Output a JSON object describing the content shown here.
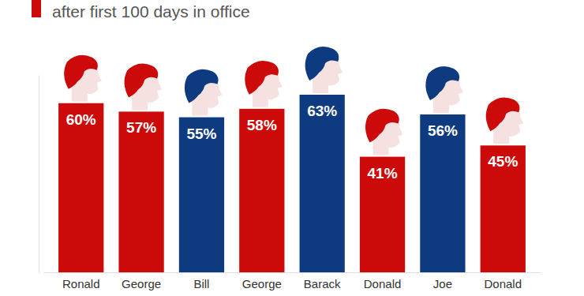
{
  "chart_data": {
    "type": "bar",
    "title": "after first 100 days in office",
    "categories": [
      "Ronald",
      "George",
      "Bill",
      "George",
      "Barack",
      "Donald",
      "Joe",
      "Donald"
    ],
    "values": [
      60,
      57,
      55,
      58,
      63,
      41,
      56,
      45
    ],
    "value_labels": [
      "60%",
      "57%",
      "55%",
      "58%",
      "63%",
      "41%",
      "56%",
      "45%"
    ],
    "colors": [
      "#cc0a0a",
      "#cc0a0a",
      "#0e3b80",
      "#cc0a0a",
      "#0e3b80",
      "#cc0a0a",
      "#0e3b80",
      "#cc0a0a"
    ],
    "ylim": [
      0,
      70
    ],
    "data_labels": true,
    "tick_labels": "x"
  }
}
